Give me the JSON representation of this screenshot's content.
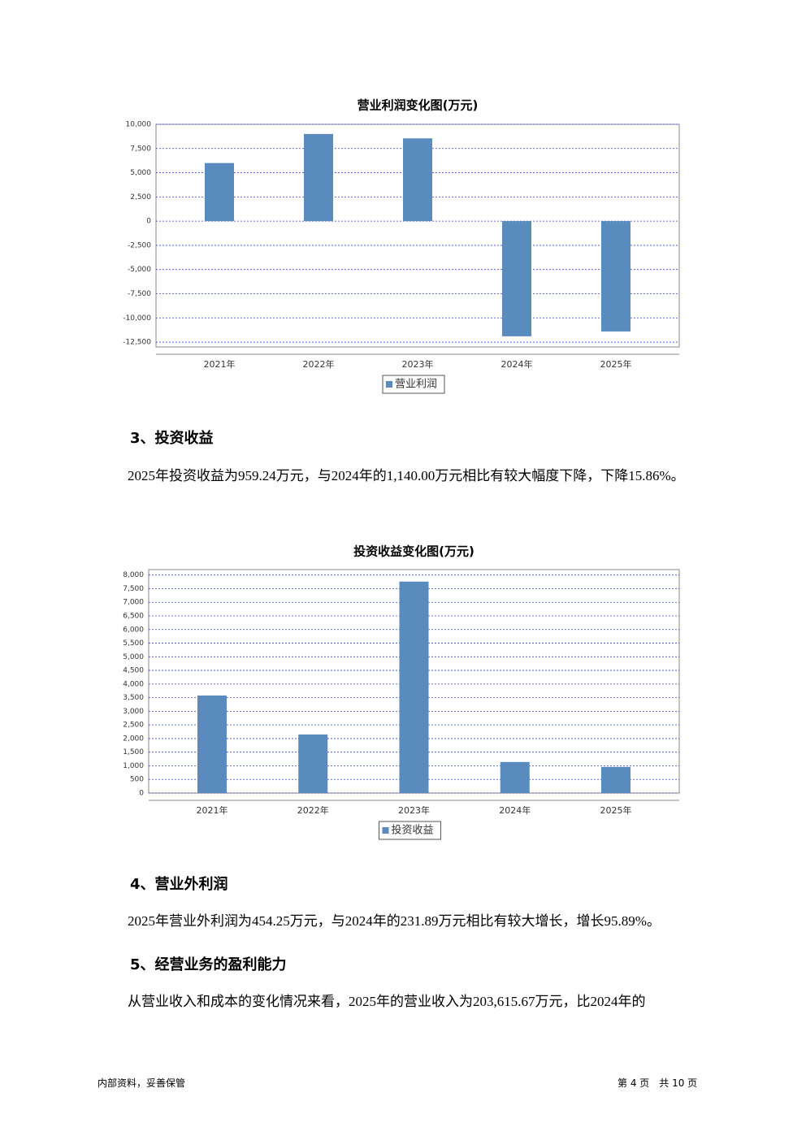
{
  "chart_data": [
    {
      "type": "bar",
      "title": "营业利润变化图(万元)",
      "categories": [
        "2021年",
        "2022年",
        "2023年",
        "2024年",
        "2025年"
      ],
      "series": [
        {
          "name": "营业利润",
          "color": "#5a8bbf",
          "values": [
            6000,
            9000,
            8550,
            -11900,
            -11400
          ]
        }
      ],
      "ylim": [
        -13000,
        10000
      ],
      "yticks": [
        {
          "value": -12500,
          "label": "-12,500"
        },
        {
          "value": -10000,
          "label": "-10,000"
        },
        {
          "value": -7500,
          "label": "-7,500"
        },
        {
          "value": -5000,
          "label": "-5,000"
        },
        {
          "value": -2500,
          "label": "-2,500"
        },
        0,
        {
          "value": 2500,
          "label": "2,500"
        },
        {
          "value": 5000,
          "label": "5,000"
        },
        {
          "value": 7500,
          "label": "7,500"
        },
        {
          "value": 10000,
          "label": "10,000"
        }
      ],
      "grid": true
    },
    {
      "type": "bar",
      "title": "投资收益变化图(万元)",
      "categories": [
        "2021年",
        "2022年",
        "2023年",
        "2024年",
        "2025年"
      ],
      "series": [
        {
          "name": "投资收益",
          "color": "#5a8bbf",
          "values": [
            3580,
            2150,
            7760,
            1140,
            959.24
          ]
        }
      ],
      "ylim": [
        0,
        8200
      ],
      "yticks": [
        0,
        500,
        {
          "value": 1000,
          "label": "1,000"
        },
        {
          "value": 1500,
          "label": "1,500"
        },
        {
          "value": 2000,
          "label": "2,000"
        },
        {
          "value": 2500,
          "label": "2,500"
        },
        {
          "value": 3000,
          "label": "3,000"
        },
        {
          "value": 3500,
          "label": "3,500"
        },
        {
          "value": 4000,
          "label": "4,000"
        },
        {
          "value": 4500,
          "label": "4,500"
        },
        {
          "value": 5000,
          "label": "5,000"
        },
        {
          "value": 5500,
          "label": "5,500"
        },
        {
          "value": 6000,
          "label": "6,000"
        },
        {
          "value": 6500,
          "label": "6,500"
        },
        {
          "value": 7000,
          "label": "7,000"
        },
        {
          "value": 7500,
          "label": "7,500"
        },
        {
          "value": 8000,
          "label": "8,000"
        }
      ],
      "grid": true
    }
  ],
  "sections": [
    {
      "heading": "3、投资收益",
      "paragraph": "2025年投资收益为959.24万元，与2024年的1,140.00万元相比有较大幅度下降，下降15.86%。"
    },
    {
      "heading": "4、营业外利润",
      "paragraph": "2025年营业外利润为454.25万元，与2024年的231.89万元相比有较大增长，增长95.89%。"
    },
    {
      "heading": "5、经营业务的盈利能力",
      "paragraph": "从营业收入和成本的变化情况来看，2025年的营业收入为203,615.67万元，比2024年的"
    }
  ],
  "footer": {
    "left": "内部资料，妥善保管",
    "right": "第 4 页　共 10 页"
  }
}
